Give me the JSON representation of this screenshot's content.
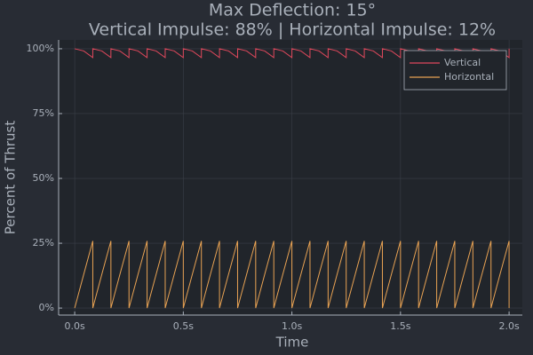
{
  "chart_data": {
    "type": "line",
    "title": "Max Deflection: 15°",
    "subtitle": "Vertical Impulse: 88% | Horizontal Impulse: 12%",
    "xlabel": "Time",
    "ylabel": "Percent of Thrust",
    "x": [
      0,
      0.0417,
      0.0833,
      0.0833,
      0.125,
      0.1667,
      0.1667,
      0.2083,
      0.25,
      0.25,
      0.2917,
      0.3333,
      0.3333,
      0.375,
      0.4167,
      0.4167,
      0.4583,
      0.5,
      0.5,
      0.5417,
      0.5833,
      0.5833,
      0.625,
      0.6667,
      0.6667,
      0.7083,
      0.75,
      0.75,
      0.7917,
      0.8333,
      0.8333,
      0.875,
      0.9167,
      0.9167,
      0.9583,
      1,
      1,
      1.0417,
      1.0833,
      1.0833,
      1.125,
      1.1667,
      1.1667,
      1.2083,
      1.25,
      1.25,
      1.2917,
      1.3333,
      1.3333,
      1.375,
      1.4167,
      1.4167,
      1.4583,
      1.5,
      1.5,
      1.5417,
      1.5833,
      1.5833,
      1.625,
      1.6667,
      1.6667,
      1.7083,
      1.75,
      1.75,
      1.7917,
      1.8333,
      1.8333,
      1.875,
      1.9167,
      1.9167,
      1.9583,
      2,
      2
    ],
    "series": [
      {
        "name": "Vertical",
        "color": "#e0485c",
        "values": [
          100,
          99.14,
          96.59,
          100,
          99.14,
          96.59,
          100,
          99.14,
          96.59,
          100,
          99.14,
          96.59,
          100,
          99.14,
          96.59,
          100,
          99.14,
          96.59,
          100,
          99.14,
          96.59,
          100,
          99.14,
          96.59,
          100,
          99.14,
          96.59,
          100,
          99.14,
          96.59,
          100,
          99.14,
          96.59,
          100,
          99.14,
          96.59,
          100,
          99.14,
          96.59,
          100,
          99.14,
          96.59,
          100,
          99.14,
          96.59,
          100,
          99.14,
          96.59,
          100,
          99.14,
          96.59,
          100,
          99.14,
          96.59,
          100,
          99.14,
          96.59,
          100,
          99.14,
          96.59,
          100,
          99.14,
          96.59,
          100,
          99.14,
          96.59,
          100,
          99.14,
          96.59,
          100,
          99.14,
          96.59,
          100
        ]
      },
      {
        "name": "Horizontal",
        "color": "#e8a253",
        "values": [
          0,
          13.05,
          25.88,
          0,
          13.05,
          25.88,
          0,
          13.05,
          25.88,
          0,
          13.05,
          25.88,
          0,
          13.05,
          25.88,
          0,
          13.05,
          25.88,
          0,
          13.05,
          25.88,
          0,
          13.05,
          25.88,
          0,
          13.05,
          25.88,
          0,
          13.05,
          25.88,
          0,
          13.05,
          25.88,
          0,
          13.05,
          25.88,
          0,
          13.05,
          25.88,
          0,
          13.05,
          25.88,
          0,
          13.05,
          25.88,
          0,
          13.05,
          25.88,
          0,
          13.05,
          25.88,
          0,
          13.05,
          25.88,
          0,
          13.05,
          25.88,
          0,
          13.05,
          25.88,
          0,
          13.05,
          25.88,
          0,
          13.05,
          25.88,
          0,
          13.05,
          25.88,
          0,
          13.05,
          25.88,
          0
        ]
      }
    ],
    "xlim": [
      -0.074,
      2.061
    ],
    "ylim": [
      -2.7,
      103.4
    ],
    "xticks": [
      {
        "value": 0,
        "label": "0.0s"
      },
      {
        "value": 0.5,
        "label": "0.5s"
      },
      {
        "value": 1,
        "label": "1.0s"
      },
      {
        "value": 1.5,
        "label": "1.5s"
      },
      {
        "value": 2,
        "label": "2.0s"
      }
    ],
    "yticks": [
      {
        "value": 0,
        "label": "0%"
      },
      {
        "value": 25,
        "label": "25%"
      },
      {
        "value": 50,
        "label": "50%"
      },
      {
        "value": 75,
        "label": "75%"
      },
      {
        "value": 100,
        "label": "100%"
      }
    ],
    "grid": true,
    "legend": "top-right"
  }
}
